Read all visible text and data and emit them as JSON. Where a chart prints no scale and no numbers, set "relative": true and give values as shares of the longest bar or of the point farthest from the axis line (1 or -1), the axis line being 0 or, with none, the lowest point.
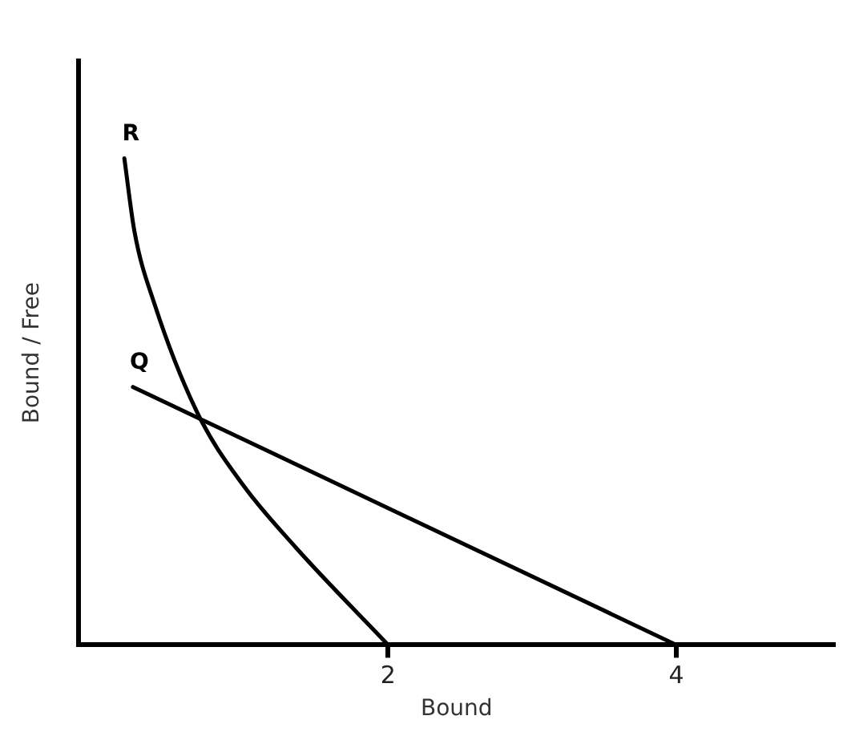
{
  "chart_data": {
    "type": "line",
    "xlabel": "Bound",
    "ylabel": "Bound / Free",
    "relative": true,
    "xlim": [
      -0.15,
      5.1
    ],
    "xticks": [
      2,
      4
    ],
    "grid": false,
    "legend": false,
    "marker": "none",
    "line_style": "solid",
    "series": [
      {
        "name": "R",
        "color": "#000000",
        "x": [
          0.17,
          0.24,
          0.38,
          0.68,
          0.99,
          1.36,
          2
        ],
        "values": [
          1,
          0.85,
          0.7,
          0.475,
          0.33,
          0.2,
          0
        ]
      },
      {
        "name": "Q",
        "color": "#000000",
        "x": [
          0.23,
          4
        ],
        "values": [
          0.53,
          0
        ]
      }
    ]
  }
}
